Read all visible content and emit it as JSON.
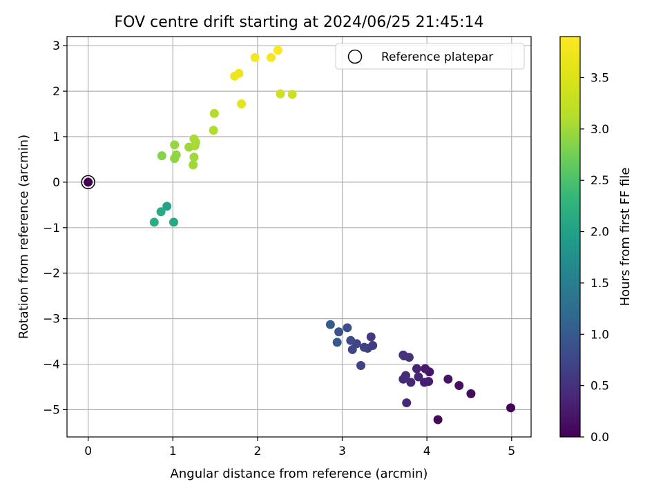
{
  "chart_data": {
    "type": "scatter",
    "title": "FOV centre drift starting at 2024/06/25 21:45:14",
    "xlabel": "Angular distance from reference (arcmin)",
    "ylabel": "Rotation from reference (arcmin)",
    "xlim": [
      -0.25,
      5.23
    ],
    "ylim": [
      -5.6,
      3.2
    ],
    "xticks": [
      0,
      1,
      2,
      3,
      4,
      5
    ],
    "yticks": [
      -5,
      -4,
      -3,
      -2,
      -1,
      0,
      1,
      2,
      3
    ],
    "grid": true,
    "legend": {
      "placement": "top-right",
      "entries": [
        "Reference platepar"
      ]
    },
    "colorbar": {
      "label": "Hours from first FF file",
      "colormap": "viridis",
      "range": [
        0.0,
        3.9
      ],
      "ticks": [
        0.0,
        0.5,
        1.0,
        1.5,
        2.0,
        2.5,
        3.0,
        3.5
      ]
    },
    "reference_point": {
      "x": 0,
      "y": 0
    },
    "points": [
      {
        "x": 0.0,
        "y": 0.0,
        "c": 0.0
      },
      {
        "x": 4.99,
        "y": -4.96,
        "c": 0.05
      },
      {
        "x": 4.13,
        "y": -5.22,
        "c": 0.08
      },
      {
        "x": 4.52,
        "y": -4.65,
        "c": 0.1
      },
      {
        "x": 4.38,
        "y": -4.47,
        "c": 0.15
      },
      {
        "x": 4.25,
        "y": -4.33,
        "c": 0.2
      },
      {
        "x": 4.03,
        "y": -4.17,
        "c": 0.22
      },
      {
        "x": 3.98,
        "y": -4.1,
        "c": 0.25
      },
      {
        "x": 4.02,
        "y": -4.38,
        "c": 0.28
      },
      {
        "x": 3.97,
        "y": -4.4,
        "c": 0.3
      },
      {
        "x": 3.88,
        "y": -4.1,
        "c": 0.32
      },
      {
        "x": 3.9,
        "y": -4.28,
        "c": 0.35
      },
      {
        "x": 3.81,
        "y": -4.4,
        "c": 0.38
      },
      {
        "x": 3.76,
        "y": -4.85,
        "c": 0.4
      },
      {
        "x": 3.72,
        "y": -4.33,
        "c": 0.42
      },
      {
        "x": 3.75,
        "y": -4.25,
        "c": 0.45
      },
      {
        "x": 3.79,
        "y": -3.85,
        "c": 0.48
      },
      {
        "x": 3.72,
        "y": -3.8,
        "c": 0.5
      },
      {
        "x": 3.73,
        "y": -3.82,
        "c": 0.52
      },
      {
        "x": 3.36,
        "y": -3.59,
        "c": 0.6
      },
      {
        "x": 3.34,
        "y": -3.4,
        "c": 0.62
      },
      {
        "x": 3.3,
        "y": -3.65,
        "c": 0.65
      },
      {
        "x": 3.26,
        "y": -3.63,
        "c": 0.68
      },
      {
        "x": 3.22,
        "y": -4.03,
        "c": 0.7
      },
      {
        "x": 3.17,
        "y": -3.55,
        "c": 0.72
      },
      {
        "x": 3.12,
        "y": -3.68,
        "c": 0.75
      },
      {
        "x": 3.1,
        "y": -3.48,
        "c": 0.8
      },
      {
        "x": 3.06,
        "y": -3.2,
        "c": 0.85
      },
      {
        "x": 2.96,
        "y": -3.29,
        "c": 0.9
      },
      {
        "x": 2.94,
        "y": -3.52,
        "c": 0.95
      },
      {
        "x": 2.86,
        "y": -3.13,
        "c": 1.0
      },
      {
        "x": 0.93,
        "y": -0.53,
        "c": 2.05
      },
      {
        "x": 1.01,
        "y": -0.88,
        "c": 2.1
      },
      {
        "x": 0.86,
        "y": -0.65,
        "c": 2.15
      },
      {
        "x": 0.78,
        "y": -0.88,
        "c": 2.2
      },
      {
        "x": 0.87,
        "y": 0.58,
        "c": 2.85
      },
      {
        "x": 1.02,
        "y": 0.52,
        "c": 2.9
      },
      {
        "x": 1.04,
        "y": 0.6,
        "c": 2.92
      },
      {
        "x": 1.02,
        "y": 0.82,
        "c": 2.95
      },
      {
        "x": 1.19,
        "y": 0.77,
        "c": 2.98
      },
      {
        "x": 1.24,
        "y": 0.38,
        "c": 3.0
      },
      {
        "x": 1.25,
        "y": 0.55,
        "c": 3.0
      },
      {
        "x": 1.26,
        "y": 0.8,
        "c": 3.02
      },
      {
        "x": 1.25,
        "y": 0.95,
        "c": 3.05
      },
      {
        "x": 1.27,
        "y": 0.88,
        "c": 3.05
      },
      {
        "x": 1.48,
        "y": 1.14,
        "c": 3.1
      },
      {
        "x": 1.49,
        "y": 1.51,
        "c": 3.1
      },
      {
        "x": 2.27,
        "y": 1.94,
        "c": 3.35
      },
      {
        "x": 2.41,
        "y": 1.93,
        "c": 3.35
      },
      {
        "x": 1.81,
        "y": 1.72,
        "c": 3.6
      },
      {
        "x": 1.73,
        "y": 2.33,
        "c": 3.7
      },
      {
        "x": 1.78,
        "y": 2.39,
        "c": 3.72
      },
      {
        "x": 1.97,
        "y": 2.74,
        "c": 3.8
      },
      {
        "x": 2.16,
        "y": 2.74,
        "c": 3.82
      },
      {
        "x": 2.24,
        "y": 2.9,
        "c": 3.9
      }
    ]
  }
}
